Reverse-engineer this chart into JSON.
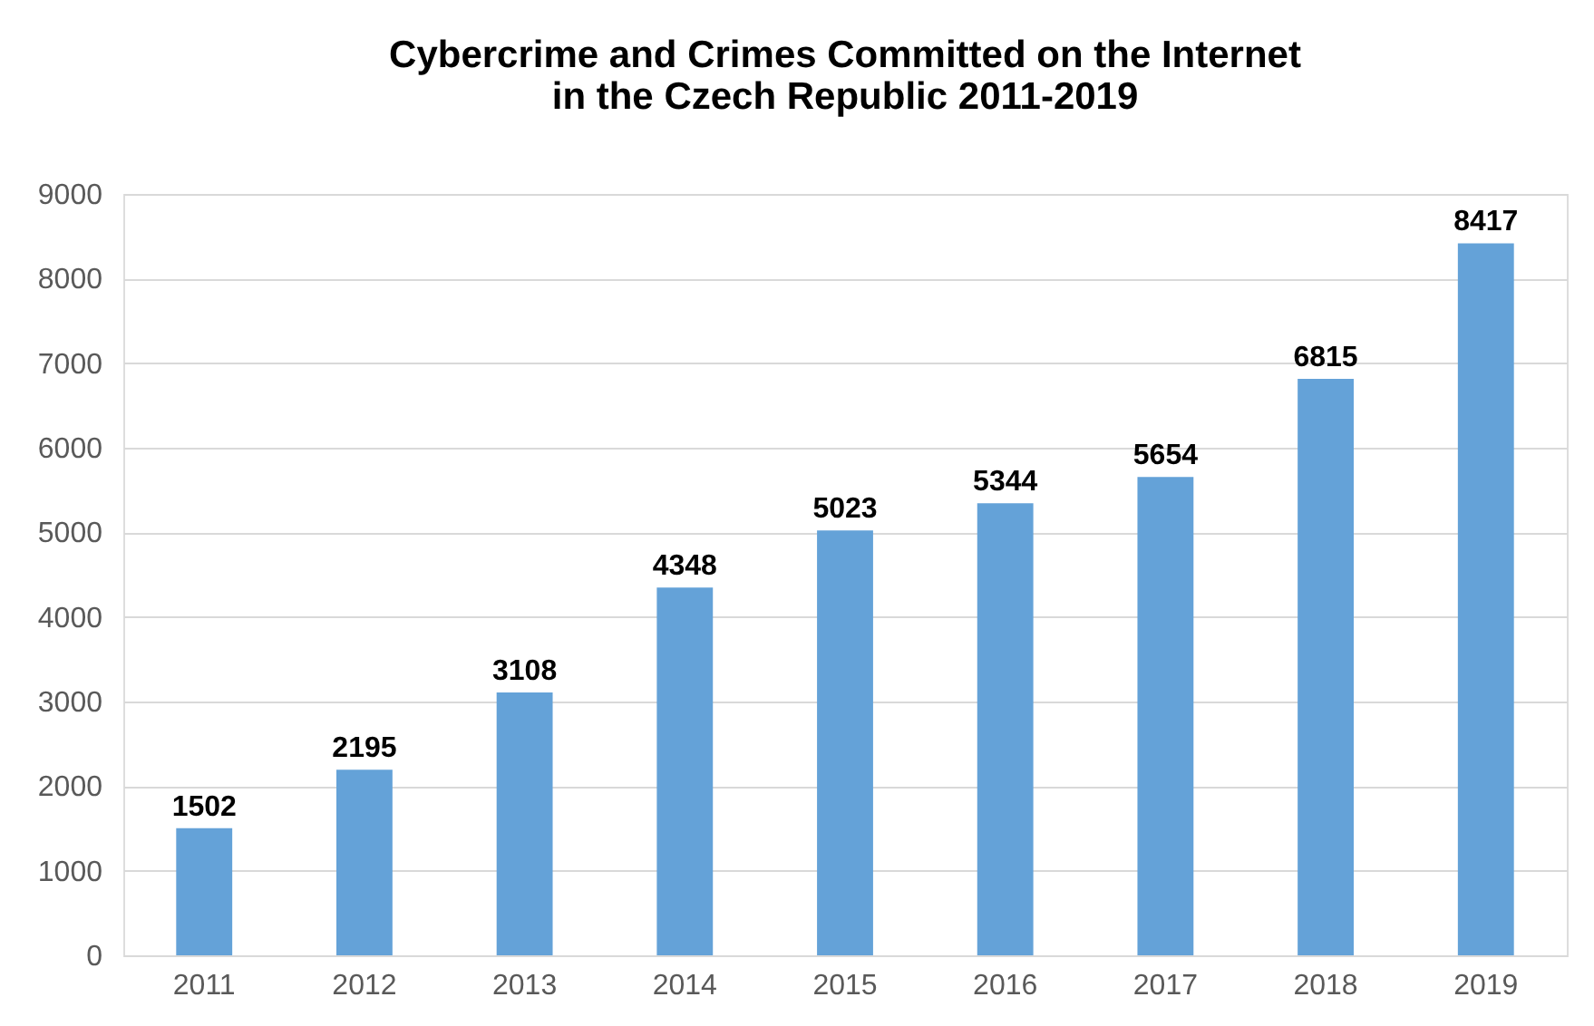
{
  "chart_data": {
    "type": "bar",
    "title": "Cybercrime and Crimes Committed on the Internet\nin the Czech Republic 2011-2019",
    "categories": [
      "2011",
      "2012",
      "2013",
      "2014",
      "2015",
      "2016",
      "2017",
      "2018",
      "2019"
    ],
    "values": [
      1502,
      2195,
      3108,
      4348,
      5023,
      5344,
      5654,
      6815,
      8417
    ],
    "color": "#64a2d8",
    "ylim": [
      0,
      9000
    ],
    "yticks": [
      0,
      1000,
      2000,
      3000,
      4000,
      5000,
      6000,
      7000,
      8000,
      9000
    ],
    "grid": "y",
    "data_labels": true
  }
}
